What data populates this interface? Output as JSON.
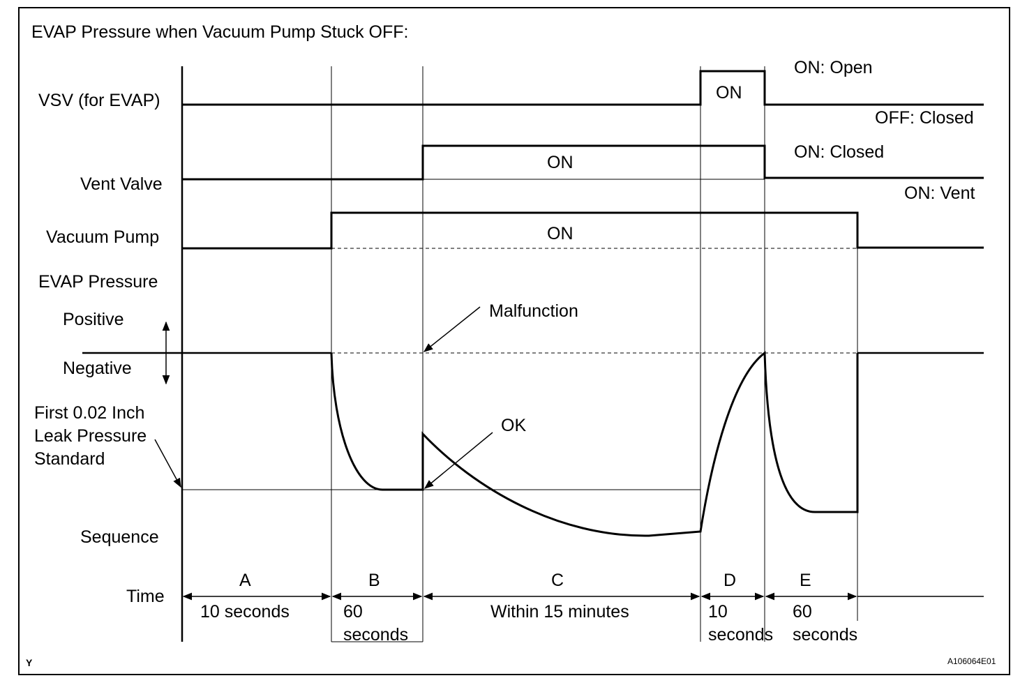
{
  "title": "EVAP Pressure when Vacuum Pump Stuck OFF:",
  "rows": {
    "vsv": "VSV (for EVAP)",
    "vent": "Vent Valve",
    "pump": "Vacuum Pump",
    "evap": "EVAP Pressure",
    "positive": "Positive",
    "negative": "Negative",
    "leak1": "First 0.02 Inch",
    "leak2": "Leak Pressure",
    "leak3": "Standard",
    "sequence": "Sequence",
    "time": "Time"
  },
  "states": {
    "vsv_on": "ON",
    "vsv_open": "ON: Open",
    "vsv_closed": "OFF: Closed",
    "vent_on": "ON",
    "vent_closed": "ON: Closed",
    "vent_vent": "ON: Vent",
    "pump_on": "ON"
  },
  "annotations": {
    "malfunction": "Malfunction",
    "ok": "OK"
  },
  "sequence": {
    "a": "A",
    "b": "B",
    "c": "C",
    "d": "D",
    "e": "E"
  },
  "durations": {
    "a": "10 seconds",
    "b1": "60",
    "b2": "seconds",
    "c": "Within 15 minutes",
    "d1": "10",
    "d2": "seconds",
    "e1": "60",
    "e2": "seconds"
  },
  "corner_mark": "Y",
  "figure_code": "A106064E01"
}
